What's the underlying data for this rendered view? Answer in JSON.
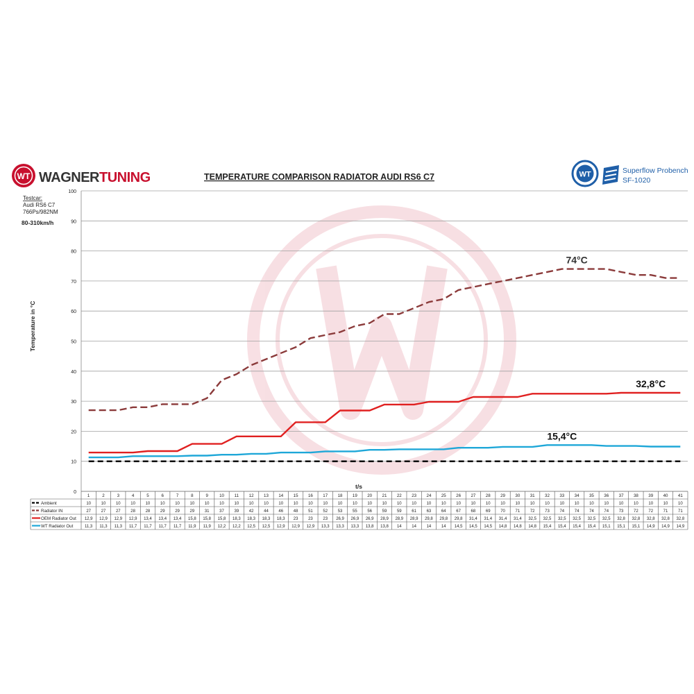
{
  "brand": {
    "logo_mark": "WT",
    "name_part1": "WAGNER",
    "name_part2": "TUNING",
    "colors": {
      "brand_red": "#c8102e",
      "brand_dark": "#333333"
    }
  },
  "bench": {
    "logo_mark": "WT",
    "line1": "Superflow Probench",
    "line2": "SF-1020",
    "color": "#1f5fa8"
  },
  "testcar": {
    "label": "Testcar:",
    "model": "Audi RS6 C7",
    "power": "766Ps/982NM",
    "speed_range": "80-310km/h"
  },
  "chart_data": {
    "type": "line",
    "title": "TEMPERATURE COMPARISON RADIATOR AUDI RS6 C7",
    "xlabel": "t/s",
    "ylabel": "Temperature in °C",
    "ylim": [
      0,
      100
    ],
    "yticks": [
      0,
      10,
      20,
      30,
      40,
      50,
      60,
      70,
      80,
      90,
      100
    ],
    "grid": true,
    "legend": "table-left",
    "x": [
      1,
      2,
      3,
      4,
      5,
      6,
      7,
      8,
      9,
      10,
      11,
      12,
      13,
      14,
      15,
      16,
      17,
      18,
      19,
      20,
      21,
      22,
      23,
      24,
      25,
      26,
      27,
      28,
      29,
      30,
      31,
      32,
      33,
      34,
      35,
      36,
      37,
      38,
      39,
      40,
      41
    ],
    "series": [
      {
        "name": "Ambient",
        "color": "#000000",
        "style": "dashed",
        "values": [
          10,
          10,
          10,
          10,
          10,
          10,
          10,
          10,
          10,
          10,
          10,
          10,
          10,
          10,
          10,
          10,
          10,
          10,
          10,
          10,
          10,
          10,
          10,
          10,
          10,
          10,
          10,
          10,
          10,
          10,
          10,
          10,
          10,
          10,
          10,
          10,
          10,
          10,
          10,
          10,
          10
        ],
        "labels": [
          "10",
          "10",
          "10",
          "10",
          "10",
          "10",
          "10",
          "10",
          "10",
          "10",
          "10",
          "10",
          "10",
          "10",
          "10",
          "10",
          "10",
          "10",
          "10",
          "10",
          "10",
          "10",
          "10",
          "10",
          "10",
          "10",
          "10",
          "10",
          "10",
          "10",
          "10",
          "10",
          "10",
          "10",
          "10",
          "10",
          "10",
          "10",
          "10",
          "10",
          "10"
        ]
      },
      {
        "name": "Radiator IN",
        "color": "#8b3a3a",
        "style": "dashed",
        "values": [
          27,
          27,
          27,
          28,
          28,
          29,
          29,
          29,
          31,
          37,
          39,
          42,
          44,
          46,
          48,
          51,
          52,
          53,
          55,
          56,
          59,
          59,
          61,
          63,
          64,
          67,
          68,
          69,
          70,
          71,
          72,
          73,
          74,
          74,
          74,
          74,
          73,
          72,
          72,
          71,
          71
        ],
        "labels": [
          "27",
          "27",
          "27",
          "28",
          "28",
          "29",
          "29",
          "29",
          "31",
          "37",
          "39",
          "42",
          "44",
          "46",
          "48",
          "51",
          "52",
          "53",
          "55",
          "56",
          "59",
          "59",
          "61",
          "63",
          "64",
          "67",
          "68",
          "69",
          "70",
          "71",
          "72",
          "73",
          "74",
          "74",
          "74",
          "74",
          "73",
          "72",
          "72",
          "71",
          "71"
        ]
      },
      {
        "name": "OEM Radiator Out",
        "color": "#e02020",
        "style": "solid",
        "values": [
          12.9,
          12.9,
          12.9,
          12.9,
          13.4,
          13.4,
          13.4,
          15.8,
          15.8,
          15.8,
          18.3,
          18.3,
          18.3,
          18.3,
          23,
          23,
          23,
          26.9,
          26.9,
          26.9,
          28.9,
          28.9,
          28.9,
          29.8,
          29.8,
          29.8,
          31.4,
          31.4,
          31.4,
          31.4,
          32.5,
          32.5,
          32.5,
          32.5,
          32.5,
          32.5,
          32.8,
          32.8,
          32.8,
          32.8,
          32.8
        ],
        "labels": [
          "12,9",
          "12,9",
          "12,9",
          "12,9",
          "13,4",
          "13,4",
          "13,4",
          "15,8",
          "15,8",
          "15,8",
          "18,3",
          "18,3",
          "18,3",
          "18,3",
          "23",
          "23",
          "23",
          "26,9",
          "26,9",
          "26,9",
          "28,9",
          "28,9",
          "28,9",
          "29,8",
          "29,8",
          "29,8",
          "31,4",
          "31,4",
          "31,4",
          "31,4",
          "32,5",
          "32,5",
          "32,5",
          "32,5",
          "32,5",
          "32,5",
          "32,8",
          "32,8",
          "32,8",
          "32,8",
          "32,8"
        ]
      },
      {
        "name": "WT Radiator Out",
        "color": "#1ea7d8",
        "style": "solid",
        "values": [
          11.3,
          11.3,
          11.3,
          11.7,
          11.7,
          11.7,
          11.7,
          11.9,
          11.9,
          12.2,
          12.2,
          12.5,
          12.5,
          12.9,
          12.9,
          12.9,
          13.3,
          13.3,
          13.3,
          13.8,
          13.8,
          14,
          14,
          14,
          14,
          14.5,
          14.5,
          14.5,
          14.8,
          14.8,
          14.8,
          15.4,
          15.4,
          15.4,
          15.4,
          15.1,
          15.1,
          15.1,
          14.9,
          14.9,
          14.9
        ],
        "labels": [
          "11,3",
          "11,3",
          "11,3",
          "11,7",
          "11,7",
          "11,7",
          "11,7",
          "11,9",
          "11,9",
          "12,2",
          "12,2",
          "12,5",
          "12,5",
          "12,9",
          "12,9",
          "12,9",
          "13,3",
          "13,3",
          "13,3",
          "13,8",
          "13,8",
          "14",
          "14",
          "14",
          "14",
          "14,5",
          "14,5",
          "14,5",
          "14,8",
          "14,8",
          "14,8",
          "15,4",
          "15,4",
          "15,4",
          "15,4",
          "15,1",
          "15,1",
          "15,1",
          "14,9",
          "14,9",
          "14,9"
        ]
      }
    ],
    "annotations": [
      {
        "text": "74°C",
        "x": 34,
        "y": 74,
        "color": "#333333"
      },
      {
        "text": "32,8°C",
        "x": 39,
        "y": 32.8,
        "color": "#111111"
      },
      {
        "text": "15,4°C",
        "x": 33,
        "y": 15.4,
        "color": "#111111"
      }
    ]
  }
}
